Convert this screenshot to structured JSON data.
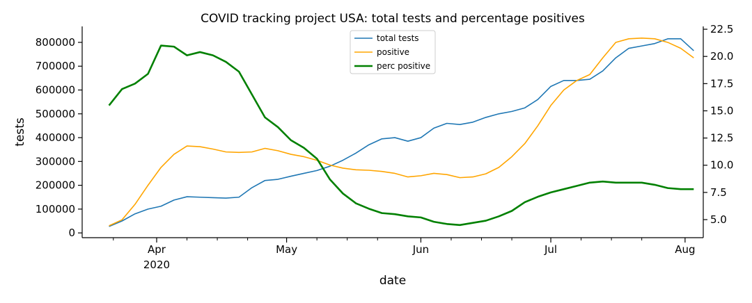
{
  "chart_data": {
    "type": "line",
    "title": "COVID tracking project USA: total tests and percentage positives",
    "xlabel": "date",
    "ylabel": "tests",
    "x_year_label": "2020",
    "x": [
      -11,
      -8,
      -5,
      -2,
      1,
      4,
      7,
      10,
      13,
      16,
      19,
      22,
      25,
      28,
      31,
      34,
      37,
      40,
      43,
      46,
      49,
      52,
      55,
      58,
      61,
      64,
      67,
      70,
      73,
      76,
      79,
      82,
      85,
      88,
      91,
      94,
      97,
      100,
      103,
      106,
      109,
      112,
      115,
      118,
      121,
      124
    ],
    "xlim": [
      -17.2,
      126.2
    ],
    "xticks": [
      {
        "value": 0,
        "label": "Apr"
      },
      {
        "value": 30,
        "label": "May"
      },
      {
        "value": 61,
        "label": "Jun"
      },
      {
        "value": 91,
        "label": "Jul"
      },
      {
        "value": 122,
        "label": "Aug"
      }
    ],
    "xminorticks": [
      -10,
      7,
      14,
      21,
      37,
      44,
      51,
      68,
      75,
      82,
      98,
      105,
      112
    ],
    "ylim": [
      -20000,
      867000
    ],
    "yticks": [
      0,
      100000,
      200000,
      300000,
      400000,
      500000,
      600000,
      700000,
      800000
    ],
    "y2lim": [
      3.34,
      22.76
    ],
    "y2ticks": [
      {
        "value": 5,
        "label": "5.0"
      },
      7.5,
      {
        "value": 10,
        "label": "10.0"
      },
      12.5,
      {
        "value": 15,
        "label": "15.0"
      },
      17.5,
      {
        "value": 20,
        "label": "20.0"
      },
      22.5
    ],
    "grid": false,
    "legend": "upper center",
    "series": [
      {
        "name": "total tests",
        "color": "#1f77b4",
        "linewidth": 1.6,
        "values": [
          27000,
          50000,
          80000,
          100000,
          112000,
          138000,
          152000,
          150000,
          148000,
          146000,
          150000,
          190000,
          220000,
          225000,
          238000,
          250000,
          262000,
          280000,
          305000,
          335000,
          370000,
          395000,
          400000,
          385000,
          400000,
          440000,
          460000,
          455000,
          465000,
          485000,
          500000,
          510000,
          525000,
          560000,
          615000,
          640000,
          640000,
          645000,
          680000,
          735000,
          775000,
          785000,
          795000,
          815000,
          815000,
          765000
        ]
      },
      {
        "name": "positive",
        "color": "#ffa500",
        "linewidth": 1.6,
        "values": [
          30000,
          55000,
          120000,
          200000,
          275000,
          330000,
          365000,
          362000,
          352000,
          340000,
          338000,
          340000,
          355000,
          345000,
          330000,
          320000,
          305000,
          285000,
          272000,
          265000,
          263000,
          258000,
          250000,
          235000,
          240000,
          250000,
          245000,
          232000,
          235000,
          248000,
          275000,
          320000,
          375000,
          450000,
          535000,
          600000,
          640000,
          665000,
          735000,
          800000,
          815000,
          818000,
          815000,
          800000,
          775000,
          735000
        ]
      },
      {
        "name": "perc positive",
        "color": "#008000",
        "linewidth": 2.6,
        "axis": "y2",
        "values": [
          15.5,
          17.0,
          17.5,
          18.4,
          21.0,
          20.9,
          20.1,
          20.4,
          20.1,
          19.5,
          18.6,
          16.5,
          14.4,
          13.5,
          12.3,
          11.6,
          10.6,
          8.7,
          7.4,
          6.5,
          6.0,
          5.6,
          5.5,
          5.3,
          5.2,
          4.8,
          4.6,
          4.5,
          4.7,
          4.9,
          5.3,
          5.8,
          6.6,
          7.1,
          7.5,
          7.8,
          8.1,
          8.4,
          8.5,
          8.4,
          8.4,
          8.4,
          8.2,
          7.9,
          7.8,
          7.8
        ]
      }
    ]
  }
}
